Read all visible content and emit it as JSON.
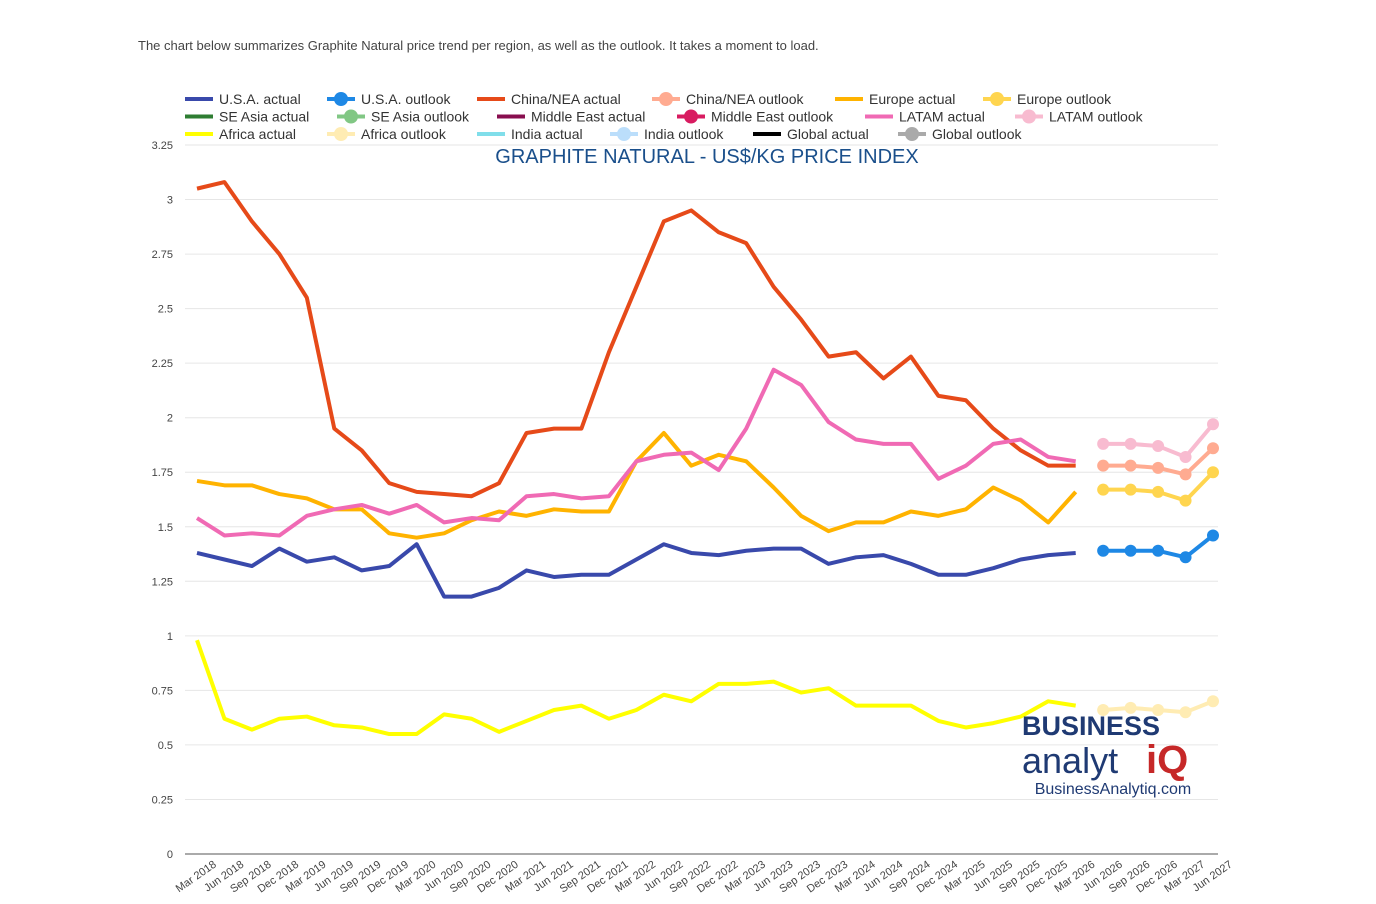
{
  "intro": "The chart below summarizes Graphite Natural price trend per region, as well as the outlook. It takes a moment to load.",
  "logo": {
    "word": "BUSINESS",
    "brand": "analyt",
    "brand_iq": "iQ",
    "url": "BusinessAnalytiq.com"
  },
  "chart_data": {
    "type": "line",
    "title": "GRAPHITE NATURAL - US$/KG PRICE INDEX",
    "grid": true,
    "categories": [
      "Mar 2018",
      "Jun 2018",
      "Sep 2018",
      "Dec 2018",
      "Mar 2019",
      "Jun 2019",
      "Sep 2019",
      "Dec 2019",
      "Mar 2020",
      "Jun 2020",
      "Sep 2020",
      "Dec 2020",
      "Mar 2021",
      "Jun 2021",
      "Sep 2021",
      "Dec 2021",
      "Mar 2022",
      "Jun 2022",
      "Sep 2022",
      "Dec 2022",
      "Mar 2023",
      "Jun 2023",
      "Sep 2023",
      "Dec 2023",
      "Mar 2024",
      "Jun 2024",
      "Sep 2024",
      "Dec 2024",
      "Mar 2025",
      "Jun 2025",
      "Sep 2025",
      "Dec 2025",
      "Mar 2026",
      "Jun 2026",
      "Sep 2026",
      "Dec 2026",
      "Mar 2027",
      "Jun 2027"
    ],
    "ylim": [
      0,
      3.25
    ],
    "yticks": [
      0,
      0.25,
      0.5,
      0.75,
      1,
      1.25,
      1.5,
      1.75,
      2,
      2.25,
      2.5,
      2.75,
      3,
      3.25
    ],
    "series": [
      {
        "name": "U.S.A. actual",
        "color": "#3949ab",
        "marker": false,
        "values": [
          1.38,
          1.35,
          1.32,
          1.4,
          1.34,
          1.36,
          1.3,
          1.32,
          1.42,
          1.18,
          1.18,
          1.22,
          1.3,
          1.27,
          1.28,
          1.28,
          1.35,
          1.42,
          1.38,
          1.37,
          1.39,
          1.4,
          1.4,
          1.33,
          1.36,
          1.37,
          1.33,
          1.28,
          1.28,
          1.31,
          1.35,
          1.37,
          1.38,
          null,
          null,
          null,
          null,
          null
        ]
      },
      {
        "name": "U.S.A. outlook",
        "color": "#1e88e5",
        "marker": true,
        "values": [
          null,
          null,
          null,
          null,
          null,
          null,
          null,
          null,
          null,
          null,
          null,
          null,
          null,
          null,
          null,
          null,
          null,
          null,
          null,
          null,
          null,
          null,
          null,
          null,
          null,
          null,
          null,
          null,
          null,
          null,
          null,
          null,
          null,
          1.39,
          1.39,
          1.39,
          1.36,
          1.46
        ]
      },
      {
        "name": "China/NEA actual",
        "color": "#e64a19",
        "marker": false,
        "values": [
          3.05,
          3.08,
          2.9,
          2.75,
          2.55,
          1.95,
          1.85,
          1.7,
          1.66,
          1.65,
          1.64,
          1.7,
          1.93,
          1.95,
          1.95,
          2.3,
          2.6,
          2.9,
          2.95,
          2.85,
          2.8,
          2.6,
          2.45,
          2.28,
          2.3,
          2.18,
          2.28,
          2.1,
          2.08,
          1.95,
          1.85,
          1.78,
          1.78,
          null,
          null,
          null,
          null,
          null
        ]
      },
      {
        "name": "China/NEA outlook",
        "color": "#ffab91",
        "marker": true,
        "values": [
          null,
          null,
          null,
          null,
          null,
          null,
          null,
          null,
          null,
          null,
          null,
          null,
          null,
          null,
          null,
          null,
          null,
          null,
          null,
          null,
          null,
          null,
          null,
          null,
          null,
          null,
          null,
          null,
          null,
          null,
          null,
          null,
          null,
          1.78,
          1.78,
          1.77,
          1.74,
          1.86
        ]
      },
      {
        "name": "Europe actual",
        "color": "#ffb300",
        "marker": false,
        "values": [
          1.71,
          1.69,
          1.69,
          1.65,
          1.63,
          1.58,
          1.58,
          1.47,
          1.45,
          1.47,
          1.53,
          1.57,
          1.55,
          1.58,
          1.57,
          1.57,
          1.8,
          1.93,
          1.78,
          1.83,
          1.8,
          1.68,
          1.55,
          1.48,
          1.52,
          1.52,
          1.57,
          1.55,
          1.58,
          1.68,
          1.62,
          1.52,
          1.66,
          null,
          null,
          null,
          null,
          null
        ]
      },
      {
        "name": "Europe outlook",
        "color": "#ffd54f",
        "marker": true,
        "values": [
          null,
          null,
          null,
          null,
          null,
          null,
          null,
          null,
          null,
          null,
          null,
          null,
          null,
          null,
          null,
          null,
          null,
          null,
          null,
          null,
          null,
          null,
          null,
          null,
          null,
          null,
          null,
          null,
          null,
          null,
          null,
          null,
          null,
          1.67,
          1.67,
          1.66,
          1.62,
          1.75
        ]
      },
      {
        "name": "SE Asia actual",
        "color": "#2e7d32",
        "marker": false,
        "values": [
          null,
          null,
          null,
          null,
          null,
          null,
          null,
          null,
          null,
          null,
          null,
          null,
          null,
          null,
          null,
          null,
          null,
          null,
          null,
          null,
          null,
          null,
          null,
          null,
          null,
          null,
          null,
          null,
          null,
          null,
          null,
          null,
          null,
          null,
          null,
          null,
          null,
          null
        ]
      },
      {
        "name": "SE Asia outlook",
        "color": "#81c784",
        "marker": true,
        "values": [
          null,
          null,
          null,
          null,
          null,
          null,
          null,
          null,
          null,
          null,
          null,
          null,
          null,
          null,
          null,
          null,
          null,
          null,
          null,
          null,
          null,
          null,
          null,
          null,
          null,
          null,
          null,
          null,
          null,
          null,
          null,
          null,
          null,
          null,
          null,
          null,
          null,
          null
        ]
      },
      {
        "name": "Middle East actual",
        "color": "#880e4f",
        "marker": false,
        "values": [
          null,
          null,
          null,
          null,
          null,
          null,
          null,
          null,
          null,
          null,
          null,
          null,
          null,
          null,
          null,
          null,
          null,
          null,
          null,
          null,
          null,
          null,
          null,
          null,
          null,
          null,
          null,
          null,
          null,
          null,
          null,
          null,
          null,
          null,
          null,
          null,
          null,
          null
        ]
      },
      {
        "name": "Middle East outlook",
        "color": "#d81b60",
        "marker": true,
        "values": [
          null,
          null,
          null,
          null,
          null,
          null,
          null,
          null,
          null,
          null,
          null,
          null,
          null,
          null,
          null,
          null,
          null,
          null,
          null,
          null,
          null,
          null,
          null,
          null,
          null,
          null,
          null,
          null,
          null,
          null,
          null,
          null,
          null,
          null,
          null,
          null,
          null,
          null
        ]
      },
      {
        "name": "LATAM actual",
        "color": "#f06ab4",
        "marker": false,
        "values": [
          1.54,
          1.46,
          1.47,
          1.46,
          1.55,
          1.58,
          1.6,
          1.56,
          1.6,
          1.52,
          1.54,
          1.53,
          1.64,
          1.65,
          1.63,
          1.64,
          1.8,
          1.83,
          1.84,
          1.76,
          1.95,
          2.22,
          2.15,
          1.98,
          1.9,
          1.88,
          1.88,
          1.72,
          1.78,
          1.88,
          1.9,
          1.82,
          1.8,
          null,
          null,
          null,
          null,
          null
        ]
      },
      {
        "name": "LATAM outlook",
        "color": "#f8bbd0",
        "marker": true,
        "values": [
          null,
          null,
          null,
          null,
          null,
          null,
          null,
          null,
          null,
          null,
          null,
          null,
          null,
          null,
          null,
          null,
          null,
          null,
          null,
          null,
          null,
          null,
          null,
          null,
          null,
          null,
          null,
          null,
          null,
          null,
          null,
          null,
          null,
          1.88,
          1.88,
          1.87,
          1.82,
          1.97
        ]
      },
      {
        "name": "Africa actual",
        "color": "#ffff00",
        "marker": false,
        "values": [
          0.98,
          0.62,
          0.57,
          0.62,
          0.63,
          0.59,
          0.58,
          0.55,
          0.55,
          0.64,
          0.62,
          0.56,
          0.61,
          0.66,
          0.68,
          0.62,
          0.66,
          0.73,
          0.7,
          0.78,
          0.78,
          0.79,
          0.74,
          0.76,
          0.68,
          0.68,
          0.68,
          0.61,
          0.58,
          0.6,
          0.63,
          0.7,
          0.68,
          null,
          null,
          null,
          null,
          null
        ]
      },
      {
        "name": "Africa outlook",
        "color": "#ffecb3",
        "marker": true,
        "values": [
          null,
          null,
          null,
          null,
          null,
          null,
          null,
          null,
          null,
          null,
          null,
          null,
          null,
          null,
          null,
          null,
          null,
          null,
          null,
          null,
          null,
          null,
          null,
          null,
          null,
          null,
          null,
          null,
          null,
          null,
          null,
          null,
          null,
          0.66,
          0.67,
          0.66,
          0.65,
          0.7
        ]
      },
      {
        "name": "India actual",
        "color": "#80deea",
        "marker": false,
        "values": [
          null,
          null,
          null,
          null,
          null,
          null,
          null,
          null,
          null,
          null,
          null,
          null,
          null,
          null,
          null,
          null,
          null,
          null,
          null,
          null,
          null,
          null,
          null,
          null,
          null,
          null,
          null,
          null,
          null,
          null,
          null,
          null,
          null,
          null,
          null,
          null,
          null,
          null
        ]
      },
      {
        "name": "India outlook",
        "color": "#bbdefb",
        "marker": true,
        "values": [
          null,
          null,
          null,
          null,
          null,
          null,
          null,
          null,
          null,
          null,
          null,
          null,
          null,
          null,
          null,
          null,
          null,
          null,
          null,
          null,
          null,
          null,
          null,
          null,
          null,
          null,
          null,
          null,
          null,
          null,
          null,
          null,
          null,
          null,
          null,
          null,
          null,
          null
        ]
      },
      {
        "name": "Global actual",
        "color": "#000000",
        "marker": false,
        "values": [
          null,
          null,
          null,
          null,
          null,
          null,
          null,
          null,
          null,
          null,
          null,
          null,
          null,
          null,
          null,
          null,
          null,
          null,
          null,
          null,
          null,
          null,
          null,
          null,
          null,
          null,
          null,
          null,
          null,
          null,
          null,
          null,
          null,
          null,
          null,
          null,
          null,
          null
        ]
      },
      {
        "name": "Global outlook",
        "color": "#aaaaaa",
        "marker": true,
        "values": [
          null,
          null,
          null,
          null,
          null,
          null,
          null,
          null,
          null,
          null,
          null,
          null,
          null,
          null,
          null,
          null,
          null,
          null,
          null,
          null,
          null,
          null,
          null,
          null,
          null,
          null,
          null,
          null,
          null,
          null,
          null,
          null,
          null,
          null,
          null,
          null,
          null,
          null
        ]
      }
    ]
  }
}
